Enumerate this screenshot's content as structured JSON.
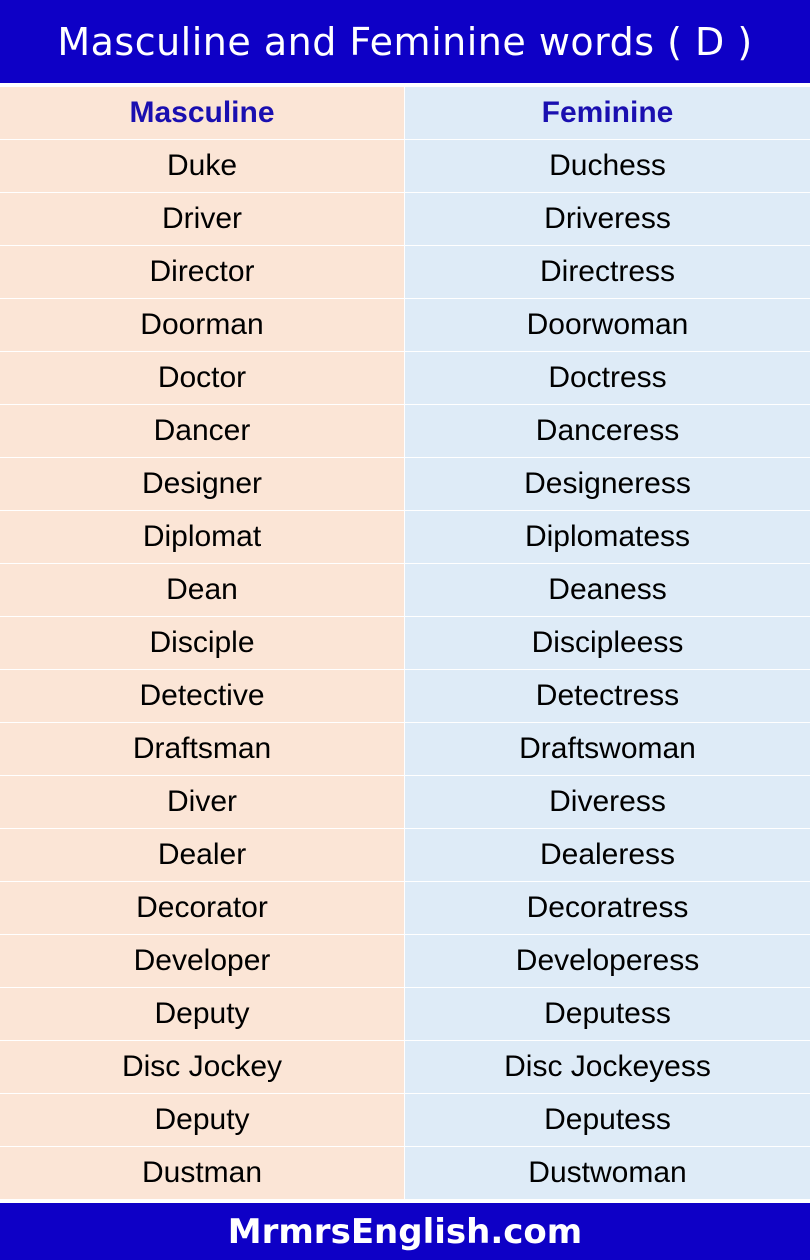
{
  "title": "Masculine and Feminine words ( D )",
  "table": {
    "headers": {
      "masculine": "Masculine",
      "feminine": "Feminine"
    },
    "rows": [
      {
        "masculine": "Duke",
        "feminine": "Duchess"
      },
      {
        "masculine": "Driver",
        "feminine": "Driveress"
      },
      {
        "masculine": "Director",
        "feminine": "Directress"
      },
      {
        "masculine": "Doorman",
        "feminine": "Doorwoman"
      },
      {
        "masculine": "Doctor",
        "feminine": "Doctress"
      },
      {
        "masculine": "Dancer",
        "feminine": "Danceress"
      },
      {
        "masculine": "Designer",
        "feminine": "Designeress"
      },
      {
        "masculine": "Diplomat",
        "feminine": "Diplomatess"
      },
      {
        "masculine": "Dean",
        "feminine": "Deaness"
      },
      {
        "masculine": "Disciple",
        "feminine": "Discipleess"
      },
      {
        "masculine": "Detective",
        "feminine": "Detectress"
      },
      {
        "masculine": "Draftsman",
        "feminine": "Draftswoman"
      },
      {
        "masculine": "Diver",
        "feminine": "Diveress"
      },
      {
        "masculine": "Dealer",
        "feminine": "Dealeress"
      },
      {
        "masculine": "Decorator",
        "feminine": "Decoratress"
      },
      {
        "masculine": "Developer",
        "feminine": "Developeress"
      },
      {
        "masculine": "Deputy",
        "feminine": "Deputess"
      },
      {
        "masculine": "Disc Jockey",
        "feminine": "Disc Jockeyess"
      },
      {
        "masculine": "Deputy",
        "feminine": "Deputess"
      },
      {
        "masculine": "Dustman",
        "feminine": "Dustwoman"
      }
    ]
  },
  "footer": "MrmrsEnglish.com",
  "colors": {
    "banner": "#0e00c6",
    "header_text": "#1a0fb0",
    "masculine_column": "#fbe5d6",
    "feminine_column": "#deebf7"
  }
}
